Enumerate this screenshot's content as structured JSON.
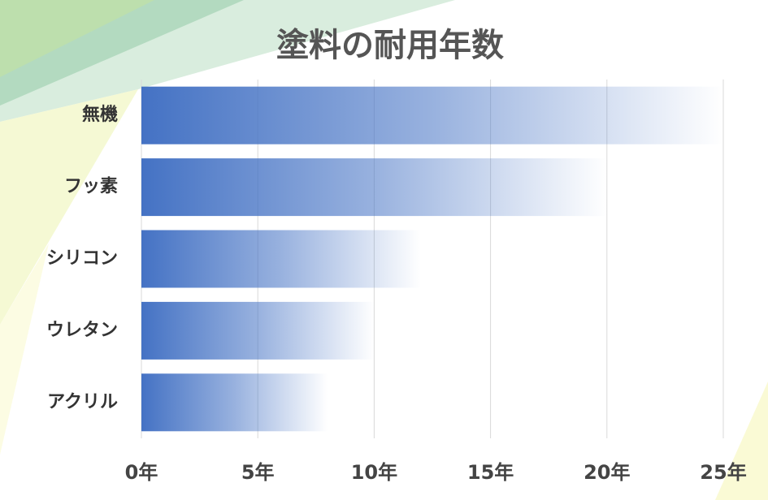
{
  "chart_data": {
    "type": "bar",
    "orientation": "horizontal",
    "title": "塗料の耐用年数",
    "categories": [
      "無機",
      "フッ素",
      "シリコン",
      "ウレタン",
      "アクリル"
    ],
    "values": [
      25,
      20,
      12,
      10,
      8
    ],
    "color": "#4472c4",
    "xlim": [
      0,
      25
    ],
    "xticks": [
      {
        "value": 0,
        "label": "0年"
      },
      {
        "value": 5,
        "label": "5年"
      },
      {
        "value": 10,
        "label": "10年"
      },
      {
        "value": 15,
        "label": "15年"
      },
      {
        "value": 20,
        "label": "20年"
      },
      {
        "value": 25,
        "label": "25年"
      }
    ],
    "grid": true
  }
}
